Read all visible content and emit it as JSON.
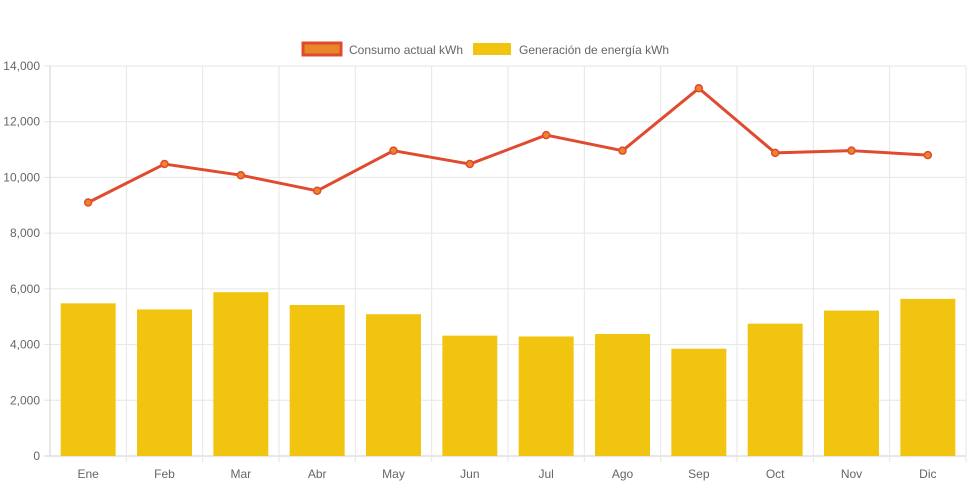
{
  "chart_data": {
    "type": "bar",
    "categories": [
      "Ene",
      "Feb",
      "Mar",
      "Abr",
      "May",
      "Jun",
      "Jul",
      "Ago",
      "Sep",
      "Oct",
      "Nov",
      "Dic"
    ],
    "series": [
      {
        "name": "Consumo actual kWh",
        "type": "line",
        "color": "#e04b2f",
        "fill": "#e8862a",
        "values": [
          9100,
          10480,
          10080,
          9520,
          10960,
          10480,
          11520,
          10960,
          13200,
          10880,
          10960,
          10800
        ]
      },
      {
        "name": "Generación de energía kWh",
        "type": "bar",
        "color": "#f1c40f",
        "values": [
          5480,
          5260,
          5880,
          5420,
          5090,
          4320,
          4290,
          4380,
          3850,
          4750,
          5220,
          5640
        ]
      }
    ],
    "yticks": [
      "0",
      "2,000",
      "4,000",
      "6,000",
      "8,000",
      "10,000",
      "12,000",
      "14,000"
    ],
    "ylim": [
      0,
      14000
    ],
    "grid": true,
    "legend": "top-center"
  }
}
